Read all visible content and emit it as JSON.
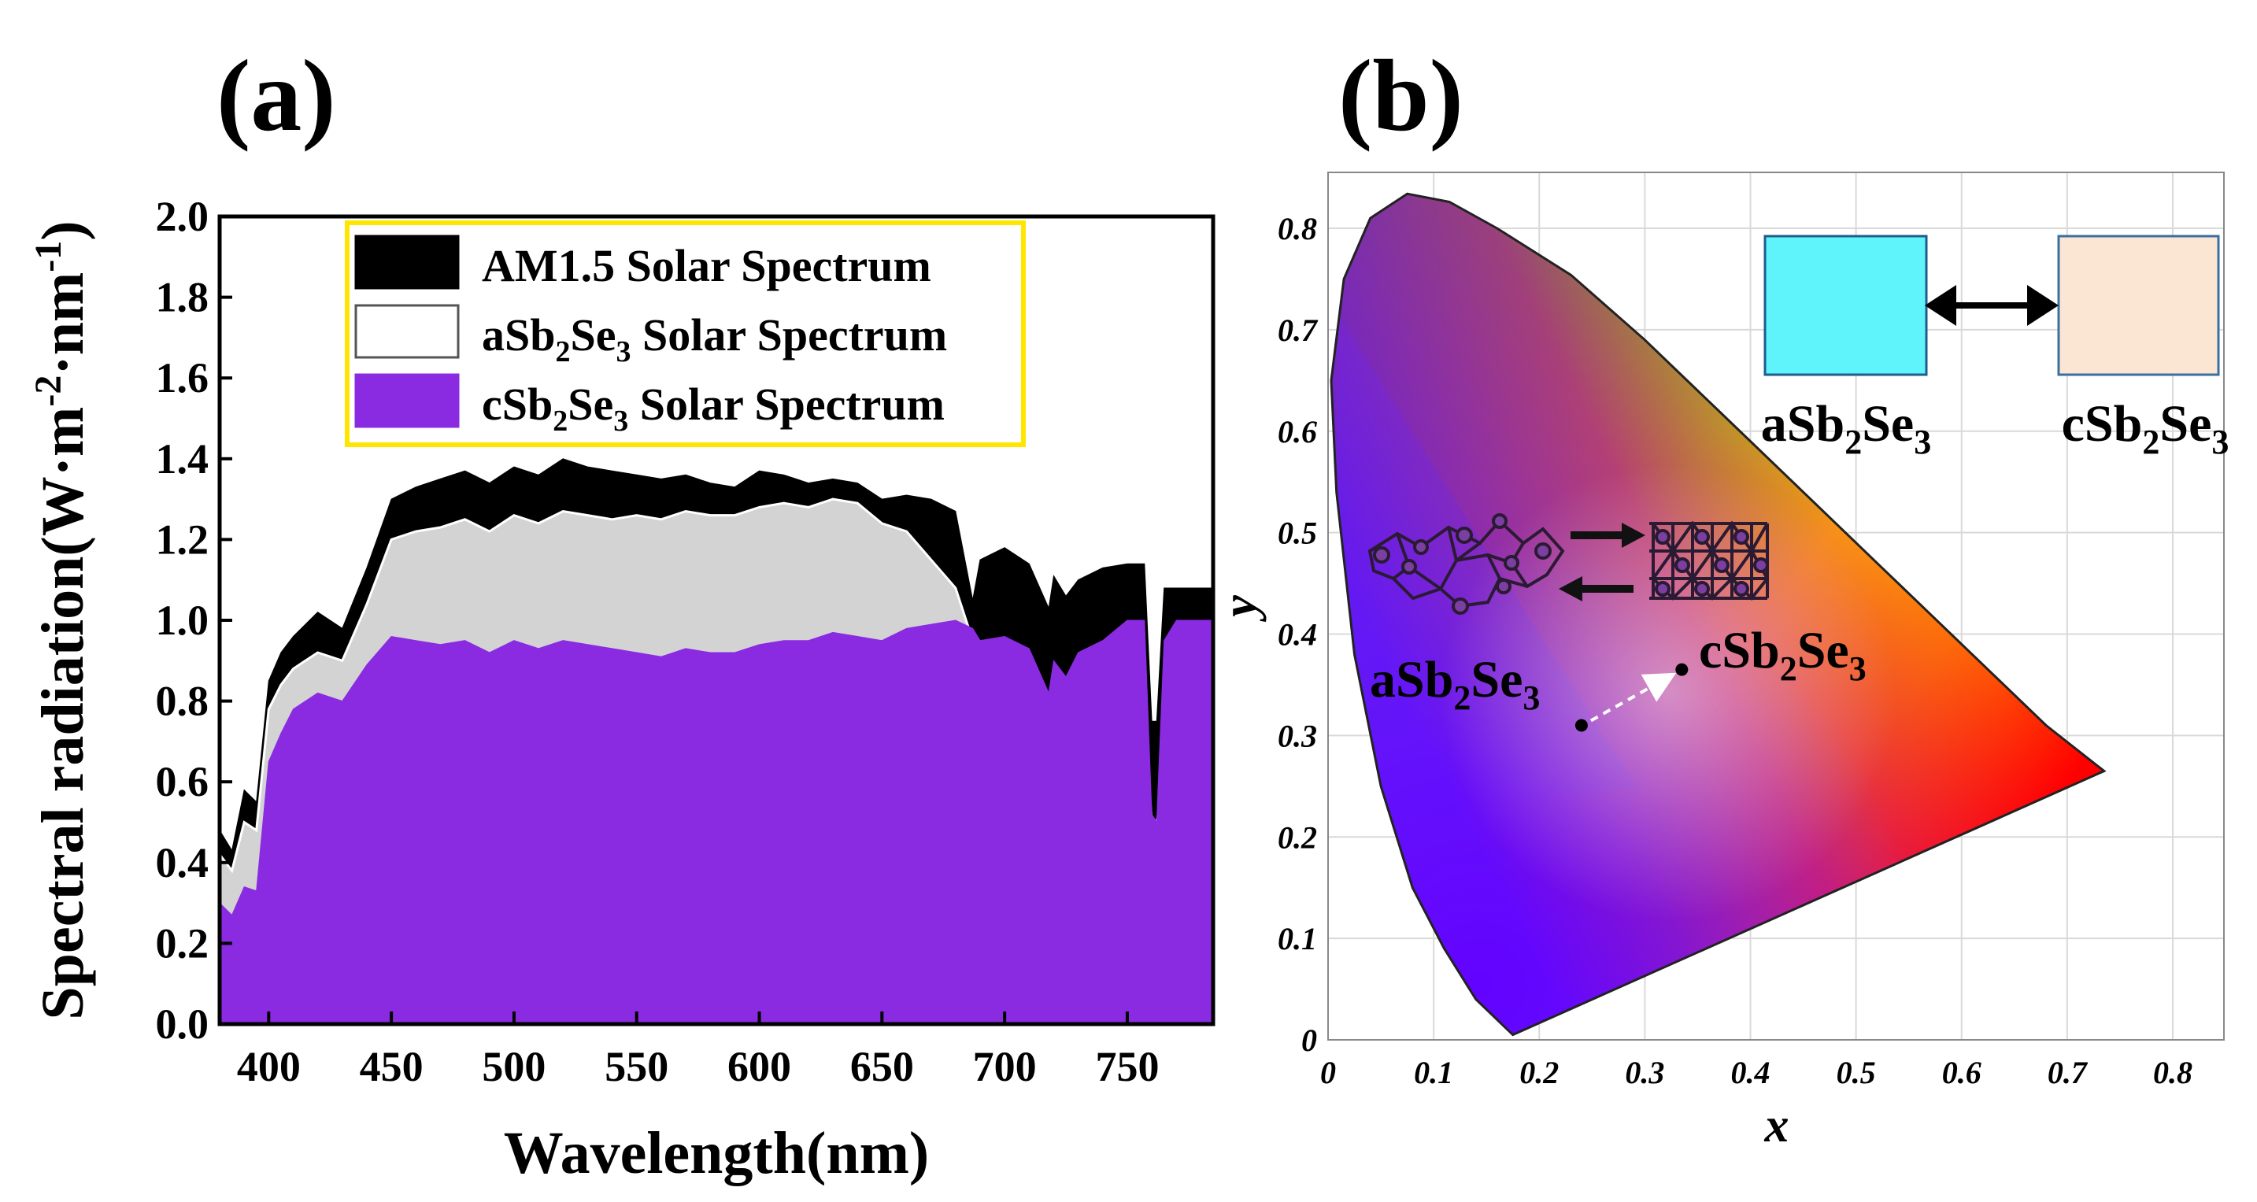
{
  "panel_a": {
    "label": "(a)",
    "ylabel": {
      "text": "Spectral radiation(W·m",
      "sup1": "-2",
      "mid": "·nm",
      "sup2": "-1",
      "end": ")"
    },
    "legend": {
      "am15": "AM1.5 Solar Spectrum",
      "a_pre": "aSb",
      "a_mid": "Se",
      "a_post": " Solar Spectrum",
      "c_pre": "cSb",
      "c_mid": "Se",
      "c_post": " Solar Spectrum",
      "sub2": "2",
      "sub3": "3"
    }
  },
  "panel_b": {
    "label": "(b)",
    "box_labels": {
      "a_pre": "aSb",
      "c_pre": "cSb",
      "mid": "Se",
      "sub2": "2",
      "sub3": "3"
    },
    "point_labels": {
      "a_pre": "aSb",
      "c_pre": "cSb",
      "mid": "Se",
      "sub2": "2",
      "sub3": "3"
    }
  },
  "chart_data": [
    {
      "type": "area",
      "title": "(a)",
      "xlabel": "Wavelength(nm)",
      "ylabel": "Spectral radiation(W·m-2·nm-1)",
      "xlim": [
        380,
        785
      ],
      "ylim": [
        0,
        2.0
      ],
      "xticks": [
        400,
        450,
        500,
        550,
        600,
        650,
        700,
        750
      ],
      "yticks": [
        0.0,
        0.2,
        0.4,
        0.6,
        0.8,
        1.0,
        1.2,
        1.4,
        1.6,
        1.8,
        2.0
      ],
      "xtick_labels": [
        "400",
        "450",
        "500",
        "550",
        "600",
        "650",
        "700",
        "750"
      ],
      "ytick_labels": [
        "0.0",
        "0.2",
        "0.4",
        "0.6",
        "0.8",
        "1.0",
        "1.2",
        "1.4",
        "1.6",
        "1.8",
        "2.0"
      ],
      "x": [
        380,
        385,
        390,
        395,
        400,
        405,
        410,
        420,
        430,
        440,
        450,
        460,
        470,
        480,
        490,
        500,
        510,
        520,
        530,
        540,
        550,
        560,
        570,
        580,
        590,
        600,
        610,
        620,
        630,
        640,
        650,
        660,
        670,
        680,
        687,
        690,
        700,
        710,
        718,
        720,
        725,
        730,
        740,
        750,
        757,
        760,
        762,
        765,
        770,
        775,
        780,
        785
      ],
      "series": [
        {
          "name": "AM1.5 Solar Spectrum",
          "color": "#000000",
          "values": [
            0.48,
            0.43,
            0.58,
            0.55,
            0.85,
            0.92,
            0.96,
            1.02,
            0.98,
            1.13,
            1.3,
            1.33,
            1.35,
            1.37,
            1.34,
            1.38,
            1.36,
            1.4,
            1.38,
            1.37,
            1.36,
            1.35,
            1.36,
            1.34,
            1.33,
            1.37,
            1.36,
            1.34,
            1.35,
            1.34,
            1.3,
            1.31,
            1.3,
            1.27,
            1.05,
            1.15,
            1.18,
            1.14,
            1.03,
            1.11,
            1.06,
            1.1,
            1.13,
            1.14,
            1.14,
            0.75,
            0.75,
            1.08,
            1.08,
            1.08,
            1.08,
            1.08
          ]
        },
        {
          "name": "aSb2Se3 Solar Spectrum",
          "color": "#d3d3d3",
          "values": [
            0.42,
            0.38,
            0.5,
            0.48,
            0.78,
            0.84,
            0.88,
            0.92,
            0.9,
            1.04,
            1.2,
            1.22,
            1.23,
            1.25,
            1.22,
            1.26,
            1.24,
            1.27,
            1.26,
            1.25,
            1.26,
            1.25,
            1.27,
            1.26,
            1.26,
            1.28,
            1.29,
            1.28,
            1.3,
            1.29,
            1.24,
            1.22,
            1.15,
            1.08,
            0.95,
            0.85,
            0.84,
            0.8,
            0.72,
            0.74,
            0.7,
            0.72,
            0.74,
            0.75,
            0.75,
            0.5,
            0.5,
            0.6,
            0.58,
            0.58,
            0.58,
            0.58
          ]
        },
        {
          "name": "cSb2Se3 Solar Spectrum",
          "color": "#8a2be2",
          "values": [
            0.3,
            0.27,
            0.34,
            0.33,
            0.65,
            0.72,
            0.78,
            0.82,
            0.8,
            0.89,
            0.96,
            0.95,
            0.94,
            0.95,
            0.92,
            0.95,
            0.93,
            0.95,
            0.94,
            0.93,
            0.92,
            0.91,
            0.93,
            0.92,
            0.92,
            0.94,
            0.95,
            0.95,
            0.97,
            0.96,
            0.95,
            0.98,
            0.99,
            1.0,
            0.98,
            0.95,
            0.96,
            0.93,
            0.82,
            0.9,
            0.86,
            0.92,
            0.95,
            1.0,
            1.0,
            0.52,
            0.5,
            0.95,
            1.0,
            1.0,
            1.0,
            1.0
          ]
        }
      ]
    },
    {
      "type": "scatter",
      "title": "(b)",
      "xlabel": "x",
      "ylabel": "y",
      "xlim": [
        0,
        0.85
      ],
      "ylim": [
        0,
        0.85
      ],
      "xticks": [
        0,
        0.1,
        0.2,
        0.3,
        0.4,
        0.5,
        0.6,
        0.7,
        0.8
      ],
      "yticks": [
        0,
        0.1,
        0.2,
        0.3,
        0.4,
        0.5,
        0.6,
        0.7,
        0.8
      ],
      "xtick_labels": [
        "0",
        "0.1",
        "0.2",
        "0.3",
        "0.4",
        "0.5",
        "0.6",
        "0.7",
        "0.8"
      ],
      "ytick_labels": [
        "0",
        "0.1",
        "0.2",
        "0.3",
        "0.4",
        "0.5",
        "0.6",
        "0.7",
        "0.8"
      ],
      "points": [
        {
          "name": "aSb2Se3",
          "x": 0.24,
          "y": 0.31,
          "color_swatch": "#5ff3fb"
        },
        {
          "name": "cSb2Se3",
          "x": 0.335,
          "y": 0.365,
          "color_swatch": "#fbe6d3"
        }
      ],
      "gamut": {
        "colors": {
          "red": "#ff0000",
          "green": "#00ff2a",
          "blue": "#1a3cff"
        },
        "locus": [
          [
            0.175,
            0.005
          ],
          [
            0.155,
            0.025
          ],
          [
            0.14,
            0.04
          ],
          [
            0.11,
            0.09
          ],
          [
            0.08,
            0.15
          ],
          [
            0.05,
            0.25
          ],
          [
            0.025,
            0.38
          ],
          [
            0.008,
            0.54
          ],
          [
            0.003,
            0.65
          ],
          [
            0.015,
            0.75
          ],
          [
            0.04,
            0.81
          ],
          [
            0.075,
            0.834
          ],
          [
            0.115,
            0.826
          ],
          [
            0.16,
            0.8
          ],
          [
            0.23,
            0.754
          ],
          [
            0.3,
            0.69
          ],
          [
            0.37,
            0.62
          ],
          [
            0.44,
            0.55
          ],
          [
            0.52,
            0.47
          ],
          [
            0.6,
            0.39
          ],
          [
            0.68,
            0.31
          ],
          [
            0.735,
            0.265
          ]
        ]
      }
    }
  ]
}
